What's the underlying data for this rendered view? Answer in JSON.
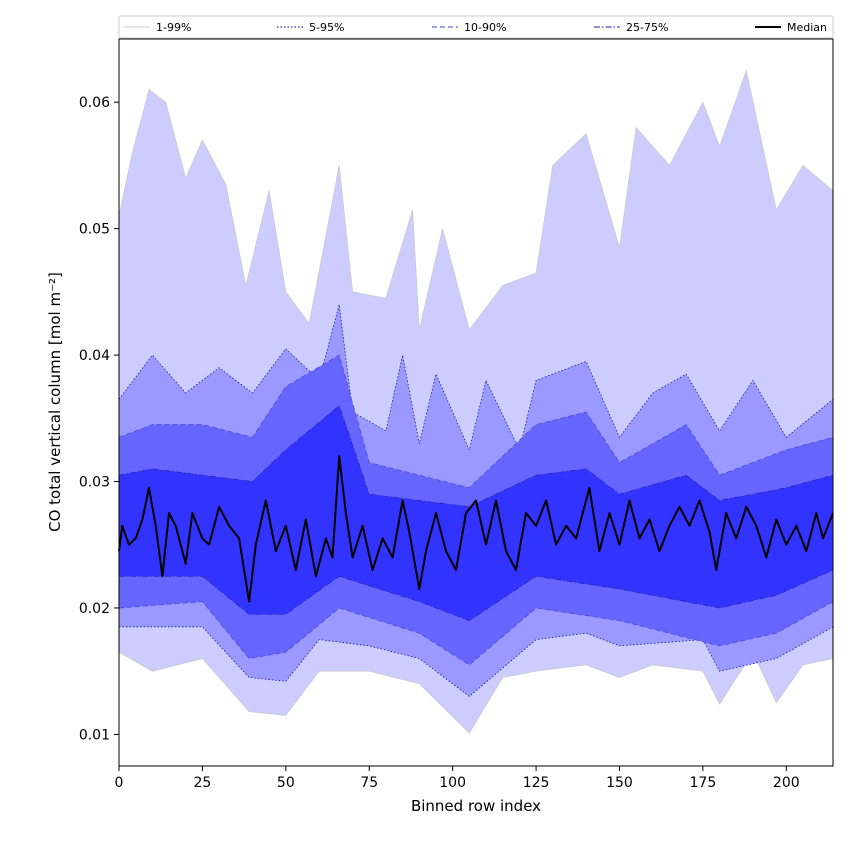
{
  "chart_data": {
    "type": "area",
    "xlabel": "Binned row index",
    "ylabel": "CO total vertical column [mol m⁻²]",
    "xlim": [
      0,
      214
    ],
    "ylim": [
      0.0075,
      0.065
    ],
    "xticks": [
      0,
      25,
      50,
      75,
      100,
      125,
      150,
      175,
      200
    ],
    "yticks": [
      0.01,
      0.02,
      0.03,
      0.04,
      0.05,
      0.06
    ],
    "ytick_labels": [
      "0.01",
      "0.02",
      "0.03",
      "0.04",
      "0.05",
      "0.06"
    ],
    "legend_position": "top (single row above plot)",
    "grid": false,
    "bands": [
      {
        "name": "1-99%",
        "lower": [
          [
            0,
            0.0165
          ],
          [
            10,
            0.015
          ],
          [
            25,
            0.016
          ],
          [
            39,
            0.0118
          ],
          [
            50,
            0.0115
          ],
          [
            60,
            0.015
          ],
          [
            75,
            0.015
          ],
          [
            90,
            0.014
          ],
          [
            105,
            0.0101
          ],
          [
            115,
            0.0145
          ],
          [
            125,
            0.015
          ],
          [
            140,
            0.0155
          ],
          [
            150,
            0.0145
          ],
          [
            160,
            0.0155
          ],
          [
            175,
            0.015
          ],
          [
            180,
            0.0124
          ],
          [
            190,
            0.0165
          ],
          [
            197,
            0.0125
          ],
          [
            205,
            0.0155
          ],
          [
            214,
            0.016
          ]
        ],
        "upper": [
          [
            0,
            0.051
          ],
          [
            4,
            0.056
          ],
          [
            9,
            0.061
          ],
          [
            14,
            0.06
          ],
          [
            20,
            0.054
          ],
          [
            25,
            0.057
          ],
          [
            32,
            0.0535
          ],
          [
            38,
            0.0455
          ],
          [
            45,
            0.053
          ],
          [
            50,
            0.045
          ],
          [
            57,
            0.0425
          ],
          [
            66,
            0.055
          ],
          [
            70,
            0.045
          ],
          [
            80,
            0.0445
          ],
          [
            88,
            0.0515
          ],
          [
            90,
            0.042
          ],
          [
            97,
            0.05
          ],
          [
            105,
            0.042
          ],
          [
            115,
            0.0455
          ],
          [
            125,
            0.0465
          ],
          [
            130,
            0.055
          ],
          [
            140,
            0.0575
          ],
          [
            150,
            0.0485
          ],
          [
            155,
            0.058
          ],
          [
            165,
            0.055
          ],
          [
            175,
            0.06
          ],
          [
            180,
            0.0565
          ],
          [
            188,
            0.0625
          ],
          [
            197,
            0.0515
          ],
          [
            205,
            0.055
          ],
          [
            214,
            0.053
          ]
        ]
      },
      {
        "name": "5-95%",
        "lower": [
          [
            0,
            0.0185
          ],
          [
            25,
            0.0185
          ],
          [
            39,
            0.0145
          ],
          [
            50,
            0.0142
          ],
          [
            60,
            0.0175
          ],
          [
            75,
            0.017
          ],
          [
            90,
            0.016
          ],
          [
            105,
            0.013
          ],
          [
            125,
            0.0175
          ],
          [
            140,
            0.018
          ],
          [
            150,
            0.017
          ],
          [
            175,
            0.0175
          ],
          [
            180,
            0.015
          ],
          [
            197,
            0.016
          ],
          [
            214,
            0.0185
          ]
        ],
        "upper": [
          [
            0,
            0.0365
          ],
          [
            10,
            0.04
          ],
          [
            20,
            0.037
          ],
          [
            30,
            0.039
          ],
          [
            40,
            0.037
          ],
          [
            50,
            0.0405
          ],
          [
            60,
            0.038
          ],
          [
            66,
            0.044
          ],
          [
            70,
            0.0355
          ],
          [
            80,
            0.034
          ],
          [
            85,
            0.04
          ],
          [
            90,
            0.033
          ],
          [
            95,
            0.0385
          ],
          [
            105,
            0.0325
          ],
          [
            110,
            0.038
          ],
          [
            120,
            0.0325
          ],
          [
            125,
            0.038
          ],
          [
            140,
            0.0395
          ],
          [
            150,
            0.0335
          ],
          [
            160,
            0.037
          ],
          [
            170,
            0.0385
          ],
          [
            180,
            0.034
          ],
          [
            190,
            0.038
          ],
          [
            200,
            0.0335
          ],
          [
            214,
            0.0365
          ]
        ]
      },
      {
        "name": "10-90%",
        "lower": [
          [
            0,
            0.02
          ],
          [
            25,
            0.0205
          ],
          [
            39,
            0.016
          ],
          [
            50,
            0.0165
          ],
          [
            66,
            0.02
          ],
          [
            90,
            0.018
          ],
          [
            105,
            0.0155
          ],
          [
            125,
            0.02
          ],
          [
            150,
            0.019
          ],
          [
            180,
            0.017
          ],
          [
            197,
            0.018
          ],
          [
            214,
            0.0205
          ]
        ],
        "upper": [
          [
            0,
            0.0335
          ],
          [
            10,
            0.0345
          ],
          [
            25,
            0.0345
          ],
          [
            40,
            0.0335
          ],
          [
            50,
            0.0375
          ],
          [
            66,
            0.04
          ],
          [
            75,
            0.0315
          ],
          [
            90,
            0.0305
          ],
          [
            105,
            0.0295
          ],
          [
            125,
            0.0345
          ],
          [
            140,
            0.0355
          ],
          [
            150,
            0.0315
          ],
          [
            170,
            0.0345
          ],
          [
            180,
            0.0305
          ],
          [
            200,
            0.0325
          ],
          [
            214,
            0.0335
          ]
        ]
      },
      {
        "name": "25-75%",
        "lower": [
          [
            0,
            0.0225
          ],
          [
            25,
            0.0225
          ],
          [
            39,
            0.0195
          ],
          [
            50,
            0.0195
          ],
          [
            66,
            0.0225
          ],
          [
            90,
            0.0205
          ],
          [
            105,
            0.019
          ],
          [
            125,
            0.0225
          ],
          [
            150,
            0.0215
          ],
          [
            180,
            0.02
          ],
          [
            197,
            0.021
          ],
          [
            214,
            0.023
          ]
        ],
        "upper": [
          [
            0,
            0.0305
          ],
          [
            10,
            0.031
          ],
          [
            25,
            0.0305
          ],
          [
            40,
            0.03
          ],
          [
            50,
            0.0325
          ],
          [
            66,
            0.036
          ],
          [
            75,
            0.029
          ],
          [
            90,
            0.0285
          ],
          [
            105,
            0.028
          ],
          [
            125,
            0.0305
          ],
          [
            140,
            0.031
          ],
          [
            150,
            0.029
          ],
          [
            170,
            0.0305
          ],
          [
            180,
            0.0285
          ],
          [
            200,
            0.0295
          ],
          [
            214,
            0.0305
          ]
        ]
      }
    ],
    "median": [
      [
        0,
        0.0245
      ],
      [
        1,
        0.0265
      ],
      [
        3,
        0.025
      ],
      [
        5,
        0.0255
      ],
      [
        7,
        0.027
      ],
      [
        9,
        0.0295
      ],
      [
        11,
        0.0265
      ],
      [
        13,
        0.0225
      ],
      [
        15,
        0.0275
      ],
      [
        17,
        0.0265
      ],
      [
        20,
        0.0235
      ],
      [
        22,
        0.0275
      ],
      [
        25,
        0.0255
      ],
      [
        27,
        0.025
      ],
      [
        30,
        0.028
      ],
      [
        33,
        0.0265
      ],
      [
        36,
        0.0255
      ],
      [
        39,
        0.0205
      ],
      [
        41,
        0.025
      ],
      [
        44,
        0.0285
      ],
      [
        47,
        0.0245
      ],
      [
        50,
        0.0265
      ],
      [
        53,
        0.023
      ],
      [
        56,
        0.027
      ],
      [
        59,
        0.0225
      ],
      [
        62,
        0.0255
      ],
      [
        64,
        0.024
      ],
      [
        66,
        0.032
      ],
      [
        68,
        0.0275
      ],
      [
        70,
        0.024
      ],
      [
        73,
        0.0265
      ],
      [
        76,
        0.023
      ],
      [
        79,
        0.0255
      ],
      [
        82,
        0.024
      ],
      [
        85,
        0.0285
      ],
      [
        87,
        0.026
      ],
      [
        90,
        0.0215
      ],
      [
        92,
        0.0245
      ],
      [
        95,
        0.0275
      ],
      [
        98,
        0.0245
      ],
      [
        101,
        0.023
      ],
      [
        104,
        0.0275
      ],
      [
        107,
        0.0285
      ],
      [
        110,
        0.025
      ],
      [
        113,
        0.0285
      ],
      [
        116,
        0.0245
      ],
      [
        119,
        0.023
      ],
      [
        122,
        0.0275
      ],
      [
        125,
        0.0265
      ],
      [
        128,
        0.0285
      ],
      [
        131,
        0.025
      ],
      [
        134,
        0.0265
      ],
      [
        137,
        0.0255
      ],
      [
        141,
        0.0295
      ],
      [
        144,
        0.0245
      ],
      [
        147,
        0.0275
      ],
      [
        150,
        0.025
      ],
      [
        153,
        0.0285
      ],
      [
        156,
        0.0255
      ],
      [
        159,
        0.027
      ],
      [
        162,
        0.0245
      ],
      [
        165,
        0.0265
      ],
      [
        168,
        0.028
      ],
      [
        171,
        0.0265
      ],
      [
        174,
        0.0285
      ],
      [
        177,
        0.026
      ],
      [
        179,
        0.023
      ],
      [
        182,
        0.0275
      ],
      [
        185,
        0.0255
      ],
      [
        188,
        0.028
      ],
      [
        191,
        0.0265
      ],
      [
        194,
        0.024
      ],
      [
        197,
        0.027
      ],
      [
        200,
        0.025
      ],
      [
        203,
        0.0265
      ],
      [
        206,
        0.0245
      ],
      [
        209,
        0.0275
      ],
      [
        211,
        0.0255
      ],
      [
        214,
        0.0275
      ]
    ],
    "series": [
      {
        "name": "1-99%",
        "color": "#ccccff",
        "line": "#c8c8c8",
        "dash": "solid"
      },
      {
        "name": "5-95%",
        "color": "#9999ff",
        "line": "#00008b",
        "dash": "dotted"
      },
      {
        "name": "10-90%",
        "color": "#6666ff",
        "line": "#4444cc",
        "dash": "dashed"
      },
      {
        "name": "25-75%",
        "color": "#3333ff",
        "line": "#2222aa",
        "dash": "dashdot"
      },
      {
        "name": "Median",
        "color": "#000000",
        "line": "#000000",
        "dash": "solid"
      }
    ]
  }
}
